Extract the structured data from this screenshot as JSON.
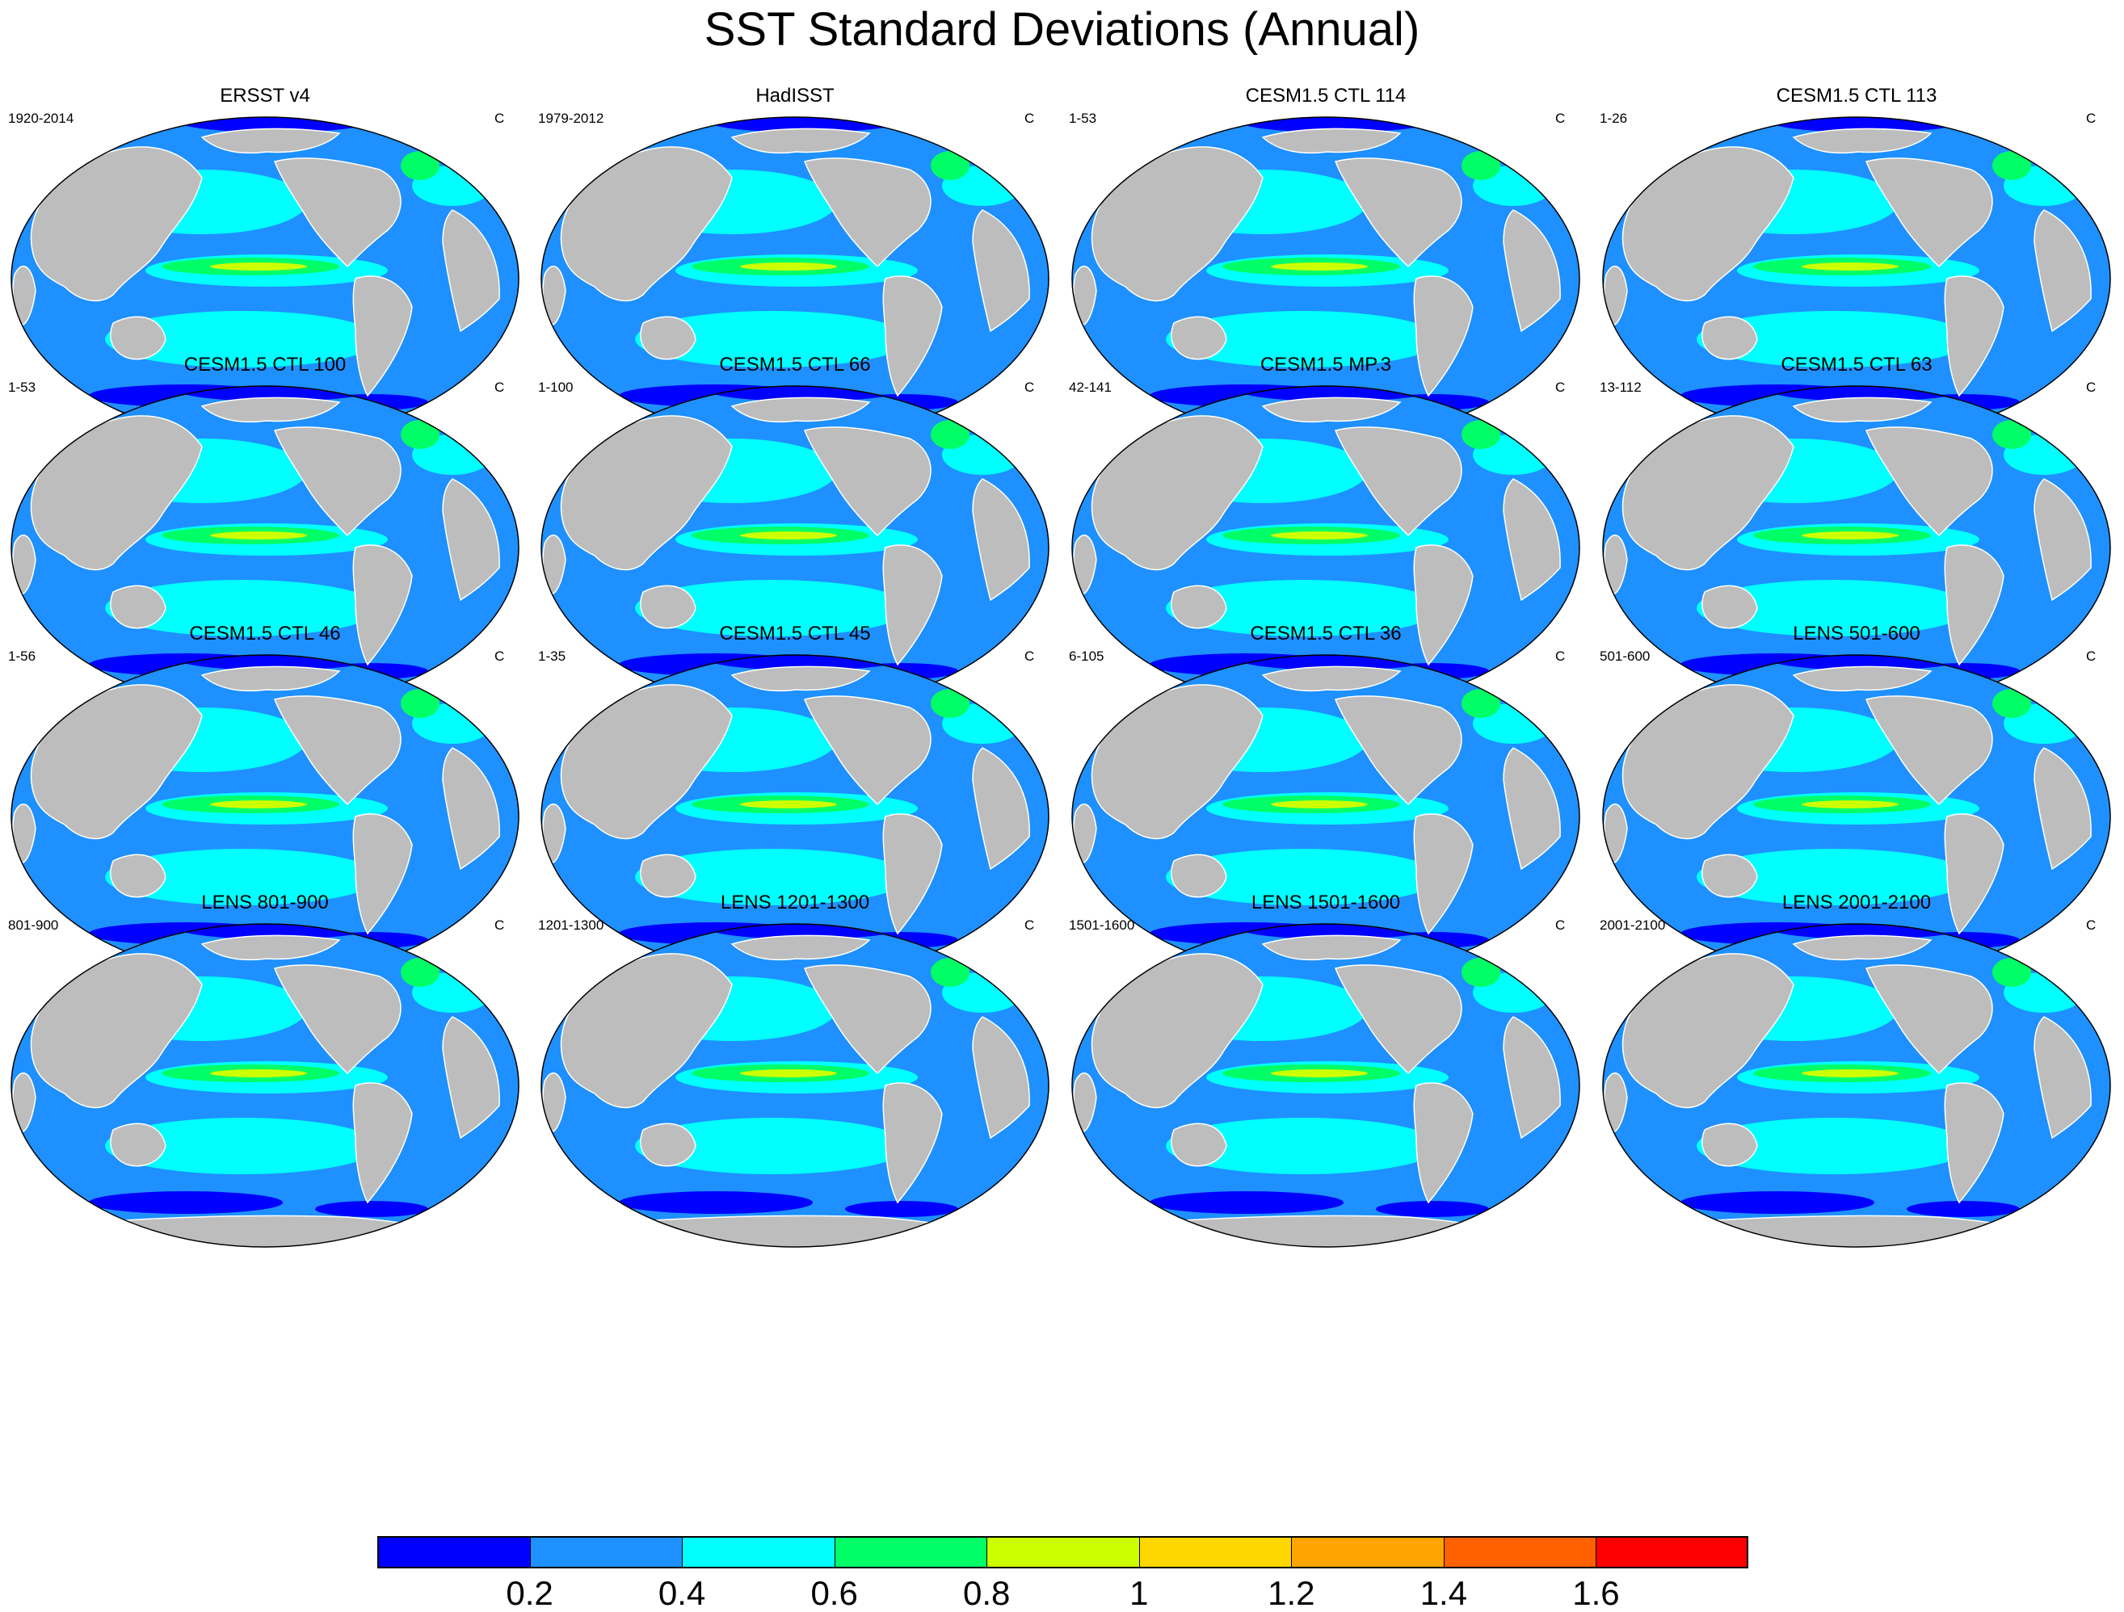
{
  "title": "SST Standard Deviations (Annual)",
  "unit_label": "C",
  "colors": {
    "land": "#bdbdbd",
    "bins": [
      "#0000ff",
      "#1e90ff",
      "#00ffff",
      "#00ff66",
      "#ccff00",
      "#ffd700",
      "#ffa500",
      "#ff6000",
      "#ff0000"
    ]
  },
  "panels": [
    {
      "title": "ERSST v4",
      "period": "1920-2014"
    },
    {
      "title": "HadISST",
      "period": "1979-2012"
    },
    {
      "title": "CESM1.5 CTL 114",
      "period": "1-53"
    },
    {
      "title": "CESM1.5 CTL 113",
      "period": "1-26"
    },
    {
      "title": "CESM1.5 CTL 100",
      "period": "1-53"
    },
    {
      "title": "CESM1.5 CTL 66",
      "period": "1-100"
    },
    {
      "title": "CESM1.5 MP.3",
      "period": "42-141"
    },
    {
      "title": "CESM1.5 CTL 63",
      "period": "13-112"
    },
    {
      "title": "CESM1.5 CTL 46",
      "period": "1-56"
    },
    {
      "title": "CESM1.5 CTL 45",
      "period": "1-35"
    },
    {
      "title": "CESM1.5 CTL 36",
      "period": "6-105"
    },
    {
      "title": "LENS 501-600",
      "period": "501-600"
    },
    {
      "title": "LENS 801-900",
      "period": "801-900"
    },
    {
      "title": "LENS 1201-1300",
      "period": "1201-1300"
    },
    {
      "title": "LENS 1501-1600",
      "period": "1501-1600"
    },
    {
      "title": "LENS 2001-2100",
      "period": "2001-2100"
    }
  ],
  "colorbar": {
    "labels": [
      "0.2",
      "0.4",
      "0.6",
      "0.8",
      "1",
      "1.2",
      "1.4",
      "1.6"
    ]
  }
}
